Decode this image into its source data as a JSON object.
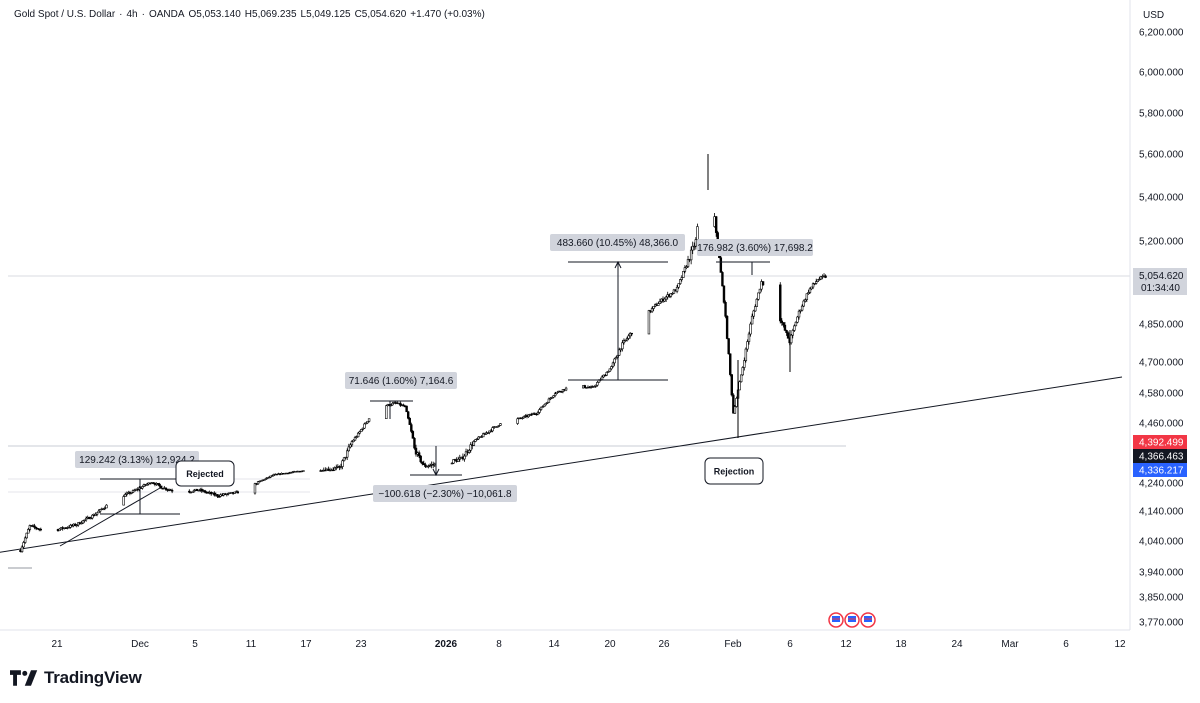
{
  "header": {
    "symbol": "Gold Spot / U.S. Dollar",
    "interval": "4h",
    "source": "OANDA",
    "open": "O5,053.140",
    "high": "H5,069.235",
    "low": "L5,049.125",
    "close": "C5,054.620",
    "change": "+1.470 (+0.03%)"
  },
  "brand": {
    "name": "TradingView"
  },
  "colors": {
    "axis_text": "#131722",
    "candle": "#000000",
    "price_tag_current": "#131722",
    "price_tag_red": "#f23645",
    "price_tag_blue": "#2962ff",
    "annotation_fill": "#d1d4dc"
  },
  "chart_data": {
    "type": "candlestick",
    "currency": "USD",
    "interval": "4h",
    "y_axis": {
      "ticks": [
        3770,
        3850,
        3940,
        4040,
        4140,
        4240,
        4336.217,
        4366.463,
        4392.499,
        4460,
        4580,
        4700,
        4850,
        5054.62,
        5200,
        5400,
        5600,
        5800,
        6000,
        6200
      ],
      "tick_labels": [
        "3,770.000",
        "3,850.000",
        "3,940.000",
        "4,040.000",
        "4,140.000",
        "4,240.000",
        "4,336.217",
        "4,366.463",
        "4,392.499",
        "4,460.000",
        "4,580.000",
        "4,700.000",
        "4,850.000",
        "5,054.620",
        "5,200.000",
        "5,400.000",
        "5,600.000",
        "5,800.000",
        "6,000.000",
        "6,200.000"
      ],
      "scale": "log-like"
    },
    "x_axis": {
      "ticks": [
        "21",
        "Dec",
        "5",
        "11",
        "17",
        "23",
        "2026",
        "8",
        "14",
        "20",
        "26",
        "Feb",
        "6",
        "12",
        "18",
        "24",
        "Mar",
        "6",
        "12"
      ]
    },
    "last_price": {
      "value": "5,054.620",
      "countdown": "01:34:40"
    },
    "price_tags": [
      {
        "label": "4,392.499",
        "style": "red"
      },
      {
        "label": "4,366.463",
        "style": "dark"
      },
      {
        "label": "4,336.217",
        "style": "blue"
      }
    ],
    "path_anchors": [
      [
        "Nov 17",
        4010
      ],
      [
        "Nov 18",
        4090
      ],
      [
        "Nov 20",
        4070
      ],
      [
        "Nov 23",
        4095
      ],
      [
        "Nov 25",
        4130
      ],
      [
        "Nov 27",
        4180
      ],
      [
        "Nov 29",
        4210
      ],
      [
        "Dec 1",
        4245
      ],
      [
        "Dec 2",
        4225
      ],
      [
        "Dec 4",
        4205
      ],
      [
        "Dec 6",
        4215
      ],
      [
        "Dec 8",
        4195
      ],
      [
        "Dec 10",
        4205
      ],
      [
        "Dec 12",
        4235
      ],
      [
        "Dec 14",
        4300
      ],
      [
        "Dec 17",
        4330
      ],
      [
        "Dec 19",
        4335
      ],
      [
        "Dec 21",
        4340
      ],
      [
        "Dec 23",
        4420
      ],
      [
        "Dec 25",
        4520
      ],
      [
        "Dec 27",
        4540
      ],
      [
        "Dec 28",
        4525
      ],
      [
        "Dec 29",
        4380
      ],
      [
        "Dec 30",
        4345
      ],
      [
        "Jan 1",
        4350
      ],
      [
        "Jan 3",
        4360
      ],
      [
        "Jan 5",
        4410
      ],
      [
        "Jan 7",
        4455
      ],
      [
        "Jan 9",
        4475
      ],
      [
        "Jan 11",
        4500
      ],
      [
        "Jan 13",
        4580
      ],
      [
        "Jan 15",
        4610
      ],
      [
        "Jan 17",
        4600
      ],
      [
        "Jan 19",
        4680
      ],
      [
        "Jan 20",
        4760
      ],
      [
        "Jan 22",
        4860
      ],
      [
        "Jan 24",
        4940
      ],
      [
        "Jan 26",
        5000
      ],
      [
        "Jan 28",
        5200
      ],
      [
        "Jan 29",
        5560
      ],
      [
        "Jan 30",
        5300
      ],
      [
        "Jan 31",
        4950
      ],
      [
        "Feb 1",
        4500
      ],
      [
        "Feb 2",
        4680
      ],
      [
        "Feb 3",
        4880
      ],
      [
        "Feb 4",
        5030
      ],
      [
        "Feb 5",
        4980
      ],
      [
        "Feb 6",
        4870
      ],
      [
        "Feb 7",
        4780
      ],
      [
        "Feb 8",
        4900
      ],
      [
        "Feb 9",
        4990
      ],
      [
        "Feb 10",
        5040
      ],
      [
        "Feb 11",
        5054.62
      ]
    ],
    "measurements": [
      {
        "label": "129.242 (3.13%) 12,924.2"
      },
      {
        "label": "71.646 (1.60%) 7,164.6"
      },
      {
        "label": "−100.618 (−2.30%) −10,061.8"
      },
      {
        "label": "483.660 (10.45%) 48,366.0"
      },
      {
        "label": "176.982 (3.60%) 17,698.2"
      }
    ],
    "annotations": [
      {
        "label": "Rejected"
      },
      {
        "label": "Rejection"
      }
    ],
    "trendline": {
      "from": [
        "Nov 17",
        3990
      ],
      "to": [
        "Mar 12",
        4600
      ]
    },
    "grid": false,
    "events_icons": [
      "flag-icon",
      "flag-icon",
      "flag-icon"
    ]
  }
}
